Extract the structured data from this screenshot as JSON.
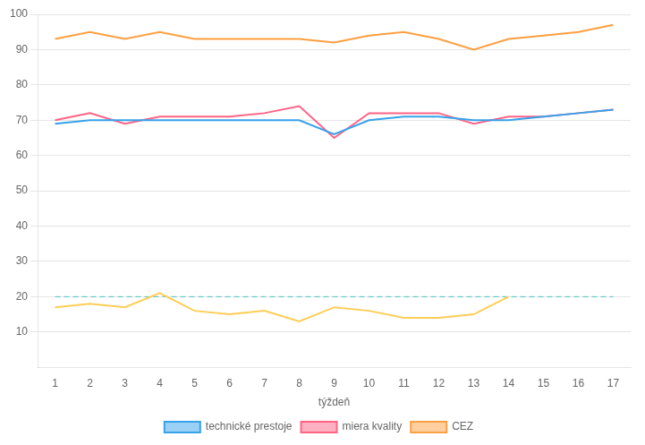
{
  "chart_data": {
    "type": "line",
    "x_label": "týždeň",
    "x": [
      1,
      2,
      3,
      4,
      5,
      6,
      7,
      8,
      9,
      10,
      11,
      12,
      13,
      14,
      15,
      16,
      17
    ],
    "series": [
      {
        "name": "technické prestoje",
        "values": [
          69,
          70,
          70,
          70,
          70,
          70,
          70,
          70,
          66,
          70,
          71,
          71,
          70,
          70,
          71,
          72,
          73
        ]
      },
      {
        "name": "miera kvality",
        "values": [
          70,
          72,
          69,
          71,
          71,
          71,
          72,
          74,
          65,
          72,
          72,
          72,
          69,
          71,
          71,
          72,
          73
        ]
      },
      {
        "name": "CEZ",
        "values": [
          93,
          95,
          93,
          95,
          93,
          93,
          93,
          93,
          92,
          94,
          95,
          93,
          90,
          93,
          94,
          95,
          97
        ]
      },
      {
        "values": [
          17,
          18,
          17,
          21,
          16,
          15,
          16,
          13,
          17,
          16,
          14,
          14,
          15,
          20,
          null,
          null,
          null
        ]
      },
      {
        "values": [
          20,
          20,
          20,
          20,
          20,
          20,
          20,
          20,
          20,
          20,
          20,
          20,
          20,
          20,
          20,
          20,
          20
        ],
        "line_style": "dashed"
      }
    ],
    "xlim": [
      0.5,
      17.5
    ],
    "xticks": [
      1,
      2,
      3,
      4,
      5,
      6,
      7,
      8,
      9,
      10,
      11,
      12,
      13,
      14,
      15,
      16,
      17
    ],
    "ylim": [
      0,
      100
    ],
    "yticks": [
      10,
      20,
      30,
      40,
      50,
      60,
      70,
      80,
      90,
      100
    ],
    "grid": true,
    "legend": "bottom"
  }
}
